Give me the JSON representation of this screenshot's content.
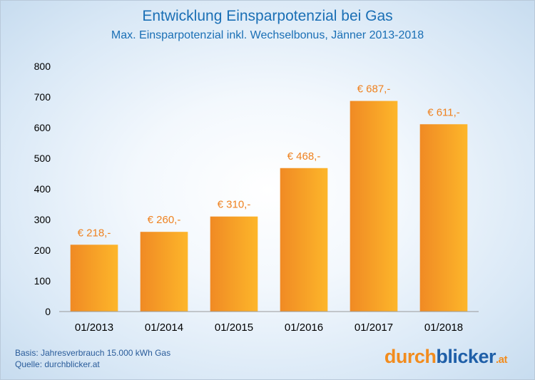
{
  "chart_data": {
    "type": "bar",
    "title": "Entwicklung Einsparpotenzial bei Gas",
    "subtitle": "Max. Einsparpotenzial inkl. Wechselbonus, Jänner 2013-2018",
    "categories": [
      "01/2013",
      "01/2014",
      "01/2015",
      "01/2016",
      "01/2017",
      "01/2018"
    ],
    "values": [
      218,
      260,
      310,
      468,
      687,
      611
    ],
    "data_labels": [
      "€ 218,-",
      "€ 260,-",
      "€ 310,-",
      "€ 468,-",
      "€ 687,-",
      "€ 611,-"
    ],
    "ylim": [
      0,
      800
    ],
    "yticks": [
      0,
      100,
      200,
      300,
      400,
      500,
      600,
      700,
      800
    ],
    "grid": false,
    "colors": {
      "bar_start": "#f08a24",
      "bar_end": "#fdb62a",
      "label": "#ef8220",
      "title": "#1a6fb5",
      "axis": "#000000"
    }
  },
  "footnote": {
    "basis": "Basis: Jahresverbrauch 15.000 kWh Gas",
    "source": "Quelle: durchblicker.at"
  },
  "logo": {
    "part1": "durch",
    "part2": "blicker",
    "part3": ".at"
  }
}
